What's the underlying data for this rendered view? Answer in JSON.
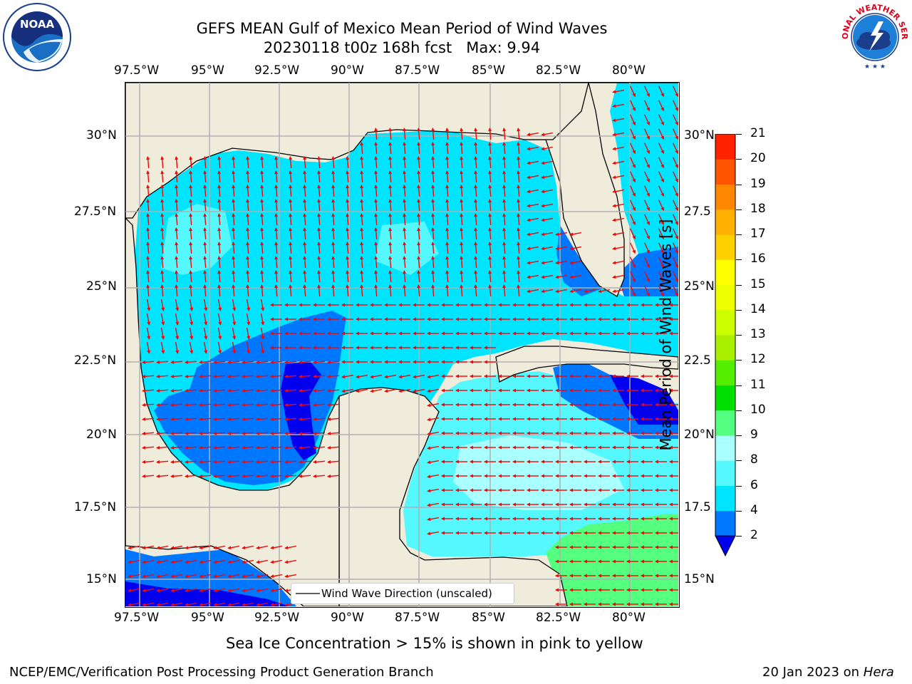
{
  "header": {
    "title_line1": "GEFS MEAN Gulf of Mexico Mean Period of Wind Waves",
    "title_line2": "20230118 t00z 168h fcst   Max: 9.94"
  },
  "logos": {
    "noaa_text": "NOAA",
    "noaa_ring": "NATIONAL OCEANIC AND ATMOSPHERIC ADMINISTRATION · U.S. DEPARTMENT OF COMMERCE",
    "nws_ring": "NATIONAL WEATHER SERVICE"
  },
  "map": {
    "lon_labels": [
      "97.5°W",
      "95°W",
      "92.5°W",
      "90°W",
      "87.5°W",
      "85°W",
      "82.5°W",
      "80°W"
    ],
    "lat_labels_left": [
      "30°N",
      "27.5°N",
      "25°N",
      "22.5°N",
      "20°N",
      "17.5°N",
      "15°N"
    ],
    "lat_labels_right": [
      "30°N",
      "27.5",
      "25°N",
      "22.5",
      "20°N",
      "17.5",
      "15°N"
    ],
    "legend_label": "Wind Wave Direction (unscaled)",
    "arrow_color": "#ff0000",
    "land_color": "#efecdc",
    "grid_color": "#b0b0b0"
  },
  "colorbar": {
    "label": "Mean Period of Wind Waves [s]",
    "ticks": [
      "2",
      "4",
      "6",
      "8",
      "9",
      "10",
      "11",
      "12",
      "13",
      "14",
      "15",
      "16",
      "17",
      "18",
      "19",
      "20",
      "21"
    ],
    "colors": [
      "#0077ff",
      "#00e5ff",
      "#55f8ff",
      "#aaffff",
      "#55ff7f",
      "#00e000",
      "#55ee00",
      "#aaee00",
      "#ccff00",
      "#eeff00",
      "#ffff00",
      "#ffd000",
      "#ffb000",
      "#ff8800",
      "#ff5500",
      "#ff2200"
    ],
    "extend_color": "#0000ee"
  },
  "footer": {
    "ice_note": "Sea Ice Concentration > 15% is shown in pink to yellow",
    "branch": "NCEP/EMC/Verification Post Processing Product Generation Branch",
    "date": "20 Jan 2023 on ",
    "machine": "Hera"
  }
}
